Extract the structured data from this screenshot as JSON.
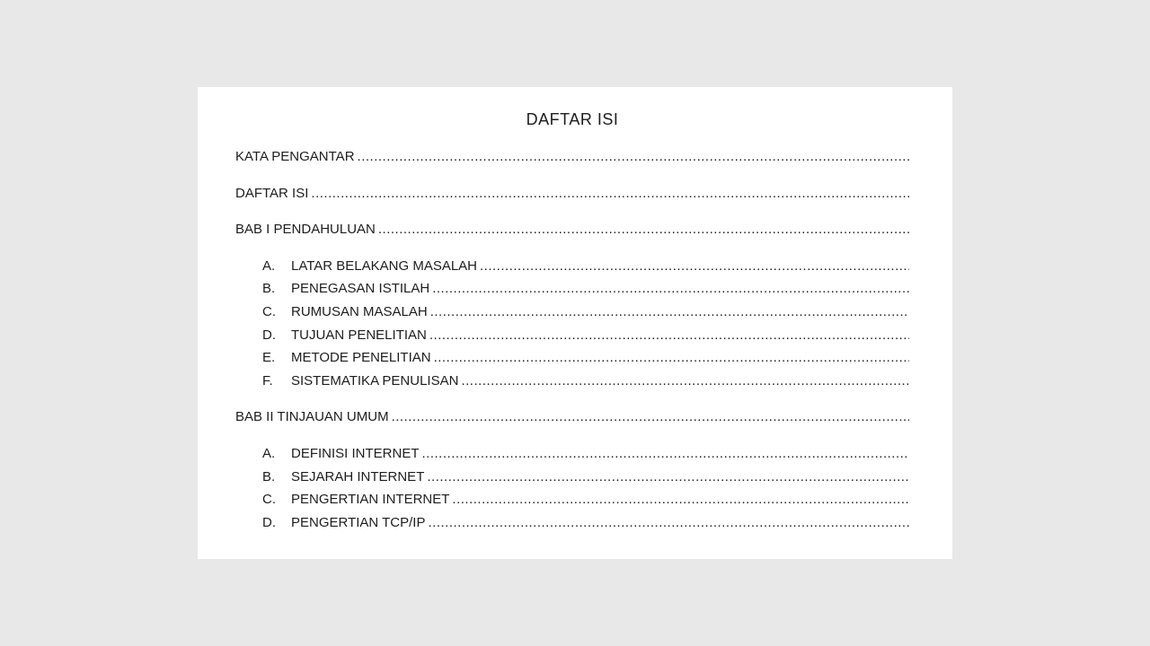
{
  "canvas": {
    "background_color": "#e8e8e8",
    "page_color": "#ffffff",
    "text_color": "#1d1d1d"
  },
  "document": {
    "title": "DAFTAR ISI",
    "entries": [
      {
        "marker": "",
        "label": "KATA PENGANTAR",
        "level": 0
      },
      {
        "marker": "",
        "label": "DAFTAR ISI",
        "level": 0
      },
      {
        "marker": "",
        "label": "BAB I PENDAHULUAN",
        "level": 0
      },
      {
        "marker": "A.",
        "label": "LATAR BELAKANG MASALAH",
        "level": 1
      },
      {
        "marker": "B.",
        "label": "PENEGASAN ISTILAH",
        "level": 1
      },
      {
        "marker": "C.",
        "label": "RUMUSAN MASALAH",
        "level": 1
      },
      {
        "marker": "D.",
        "label": "TUJUAN PENELITIAN",
        "level": 1
      },
      {
        "marker": "E.",
        "label": "METODE PENELITIAN",
        "level": 1
      },
      {
        "marker": "F.",
        "label": "SISTEMATIKA PENULISAN",
        "level": 1
      },
      {
        "marker": "",
        "label": "BAB II TINJAUAN UMUM",
        "level": 0
      },
      {
        "marker": "A.",
        "label": "DEFINISI INTERNET",
        "level": 1
      },
      {
        "marker": "B.",
        "label": "SEJARAH INTERNET",
        "level": 1
      },
      {
        "marker": "C.",
        "label": "PENGERTIAN INTERNET",
        "level": 1
      },
      {
        "marker": "D.",
        "label": "PENGERTIAN TCP/IP",
        "level": 1
      }
    ]
  }
}
